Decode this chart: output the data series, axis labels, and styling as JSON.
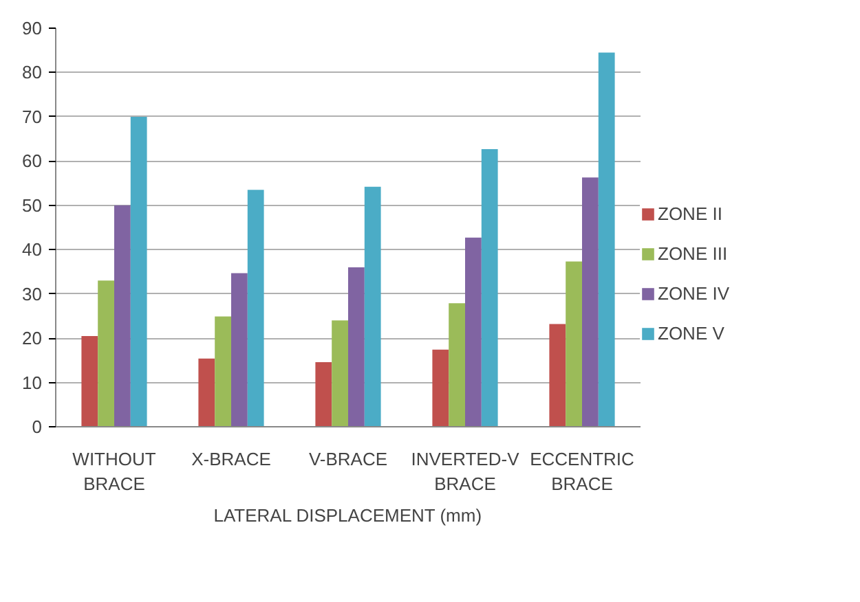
{
  "chart_data": {
    "type": "bar",
    "xlabel": "LATERAL DISPLACEMENT (mm)",
    "categories": [
      "WITHOUT BRACE",
      "X-BRACE",
      "V-BRACE",
      "INVERTED-V BRACE",
      "ECCENTRIC BRACE"
    ],
    "series": [
      {
        "name": "ZONE II",
        "color": "#c0504d",
        "values": [
          20.5,
          15.4,
          14.6,
          17.4,
          23.2
        ]
      },
      {
        "name": "ZONE III",
        "color": "#9bbb59",
        "values": [
          33,
          24.9,
          24,
          27.9,
          37.3
        ]
      },
      {
        "name": "ZONE IV",
        "color": "#8064a2",
        "values": [
          50,
          34.7,
          36,
          42.7,
          56.3
        ]
      },
      {
        "name": "ZONE V",
        "color": "#4bacc6",
        "values": [
          70,
          53.5,
          54.2,
          62.7,
          84.5
        ]
      }
    ],
    "ylim": [
      0,
      90
    ],
    "yticks": [
      0,
      10,
      20,
      30,
      40,
      50,
      60,
      70,
      80,
      90
    ],
    "grid": "y",
    "legend": "right"
  }
}
